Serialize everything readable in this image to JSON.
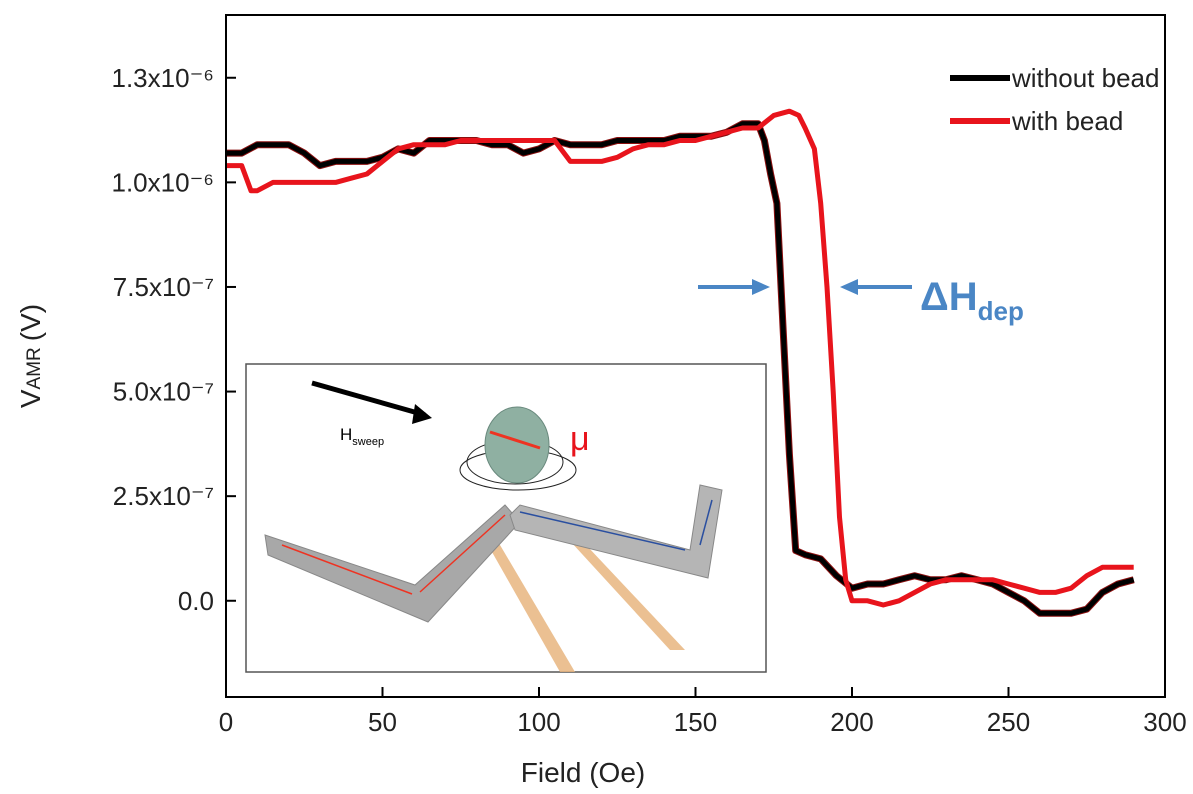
{
  "chart_data": {
    "type": "line",
    "x_label": "Field (Oe)",
    "y_label": {
      "symbol": "V",
      "subscript": "AMR",
      "unit": "(V)"
    },
    "xlim": [
      0,
      300
    ],
    "xticks": [
      0,
      50,
      100,
      150,
      200,
      250,
      300
    ],
    "ylim": [
      -2.3e-07,
      1.4e-06
    ],
    "yticks": [
      {
        "value": 0,
        "label": "0.0"
      },
      {
        "value": 2.5e-07,
        "label": "2.5x10⁻⁷"
      },
      {
        "value": 5e-07,
        "label": "5.0x10⁻⁷"
      },
      {
        "value": 7.5e-07,
        "label": "7.5x10⁻⁷"
      },
      {
        "value": 1e-06,
        "label": "1.0x10⁻⁶"
      },
      {
        "value": 1.25e-06,
        "label": "1.3x10⁻⁶"
      }
    ],
    "legend": "upper right",
    "series": [
      {
        "name": "without bead",
        "color": "#000000",
        "x": [
          0,
          5,
          10,
          15,
          20,
          25,
          30,
          35,
          40,
          45,
          50,
          55,
          60,
          65,
          70,
          75,
          80,
          85,
          90,
          95,
          100,
          105,
          110,
          115,
          120,
          125,
          130,
          135,
          140,
          145,
          150,
          155,
          160,
          165,
          170,
          172,
          174,
          176,
          178,
          180,
          182,
          185,
          190,
          195,
          200,
          205,
          210,
          215,
          220,
          225,
          230,
          235,
          240,
          245,
          250,
          255,
          260,
          265,
          270,
          275,
          280,
          285,
          290
        ],
        "values": [
          1.07e-06,
          1.07e-06,
          1.09e-06,
          1.09e-06,
          1.09e-06,
          1.07e-06,
          1.04e-06,
          1.05e-06,
          1.05e-06,
          1.05e-06,
          1.06e-06,
          1.08e-06,
          1.07e-06,
          1.1e-06,
          1.1e-06,
          1.1e-06,
          1.1e-06,
          1.09e-06,
          1.09e-06,
          1.07e-06,
          1.08e-06,
          1.1e-06,
          1.09e-06,
          1.09e-06,
          1.09e-06,
          1.1e-06,
          1.1e-06,
          1.1e-06,
          1.1e-06,
          1.11e-06,
          1.11e-06,
          1.11e-06,
          1.12e-06,
          1.14e-06,
          1.14e-06,
          1.1e-06,
          1.02e-06,
          9.5e-07,
          6.5e-07,
          3.5e-07,
          1.2e-07,
          1.1e-07,
          1e-07,
          6e-08,
          3e-08,
          4e-08,
          4e-08,
          5e-08,
          6e-08,
          5e-08,
          5e-08,
          6e-08,
          5e-08,
          4e-08,
          2e-08,
          0,
          -3e-08,
          -3e-08,
          -3e-08,
          -2e-08,
          2e-08,
          4e-08,
          5e-08
        ]
      },
      {
        "name": "with bead",
        "color": "#e8141c",
        "x": [
          0,
          5,
          8,
          10,
          15,
          20,
          30,
          35,
          40,
          45,
          50,
          55,
          60,
          65,
          70,
          75,
          80,
          85,
          90,
          95,
          100,
          105,
          110,
          115,
          120,
          125,
          130,
          135,
          140,
          145,
          150,
          155,
          160,
          165,
          170,
          175,
          180,
          183,
          185,
          188,
          190,
          192,
          194,
          196,
          198,
          200,
          205,
          210,
          215,
          220,
          225,
          230,
          235,
          240,
          245,
          250,
          255,
          260,
          265,
          270,
          275,
          280,
          285,
          290
        ],
        "values": [
          1.04e-06,
          1.04e-06,
          9.8e-07,
          9.8e-07,
          1e-06,
          1e-06,
          1e-06,
          1e-06,
          1.01e-06,
          1.02e-06,
          1.05e-06,
          1.08e-06,
          1.09e-06,
          1.09e-06,
          1.09e-06,
          1.1e-06,
          1.1e-06,
          1.1e-06,
          1.1e-06,
          1.1e-06,
          1.1e-06,
          1.1e-06,
          1.05e-06,
          1.05e-06,
          1.05e-06,
          1.06e-06,
          1.08e-06,
          1.09e-06,
          1.09e-06,
          1.1e-06,
          1.1e-06,
          1.11e-06,
          1.12e-06,
          1.13e-06,
          1.13e-06,
          1.16e-06,
          1.17e-06,
          1.16e-06,
          1.13e-06,
          1.08e-06,
          9.5e-07,
          7.5e-07,
          5e-07,
          2e-07,
          5e-08,
          0,
          0,
          -1e-08,
          0,
          2e-08,
          4e-08,
          5e-08,
          5e-08,
          5e-08,
          5e-08,
          4e-08,
          3e-08,
          2e-08,
          2e-08,
          3e-08,
          6e-08,
          8e-08,
          8e-08,
          8e-08
        ]
      }
    ],
    "annotation": {
      "symbol": "ΔH",
      "subscript": "dep"
    },
    "inset": {
      "field": {
        "symbol": "H",
        "subscript": "sweep"
      },
      "moment": "μ"
    }
  }
}
